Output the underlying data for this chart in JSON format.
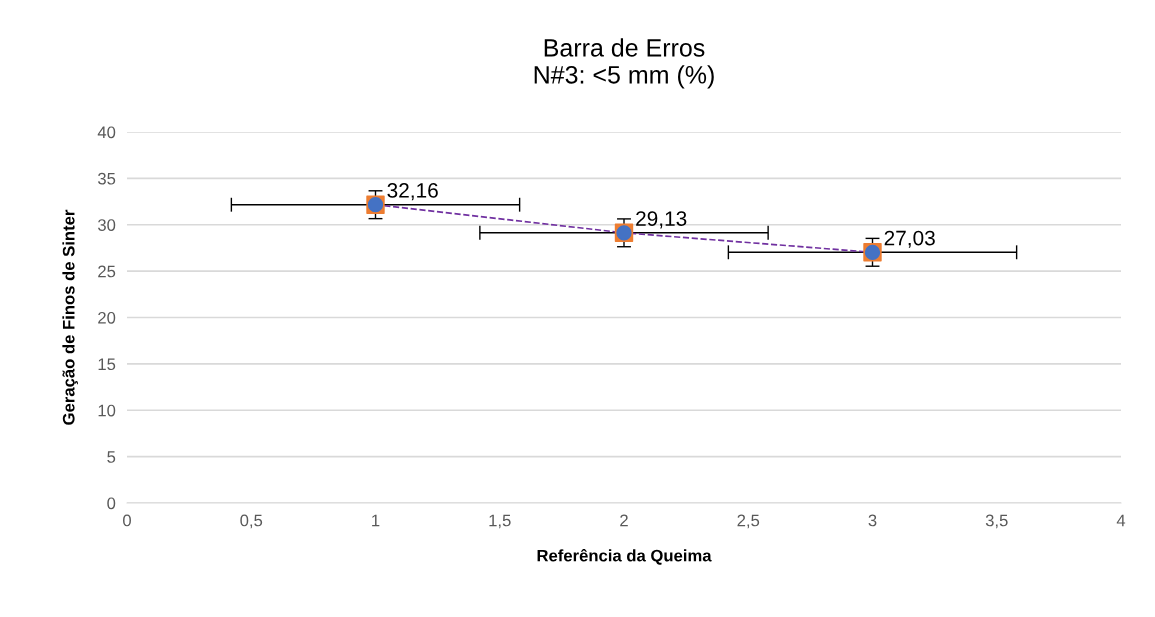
{
  "chart_data": {
    "type": "scatter",
    "title": "Barra de Erros\nN#3: <5 mm (%)",
    "xlabel": "Referência da Queima",
    "ylabel": "Geração de Finos de Sinter",
    "x": [
      1,
      2,
      3
    ],
    "series": [
      {
        "marker": "square",
        "color": "#ed7d31",
        "values": [
          32.16,
          29.13,
          27.03
        ],
        "errors": [
          1.5,
          1.5,
          1.5
        ],
        "xerrors": [
          0.58,
          0.58,
          0.58
        ]
      },
      {
        "marker": "circle",
        "color": "#4472c4",
        "values": [
          32.16,
          29.13,
          27.03
        ],
        "data_labels": true,
        "value_labels": [
          "32,16",
          "29,13",
          "27,03"
        ]
      },
      {
        "type": "line",
        "marker": "none",
        "line_style": "dashed",
        "color": "#7030a0",
        "values": [
          32.16,
          29.13,
          27.03
        ]
      }
    ],
    "xlim": [
      0,
      4
    ],
    "xticks": [
      0,
      {
        "value": 0.5,
        "label": "0,5"
      },
      1,
      {
        "value": 1.5,
        "label": "1,5"
      },
      2,
      {
        "value": 2.5,
        "label": "2,5"
      },
      3,
      {
        "value": 3.5,
        "label": "3,5"
      },
      4
    ],
    "ylim": [
      0,
      40
    ],
    "yticks": [
      0,
      5,
      10,
      15,
      20,
      25,
      30,
      35,
      40
    ],
    "grid": "y"
  }
}
